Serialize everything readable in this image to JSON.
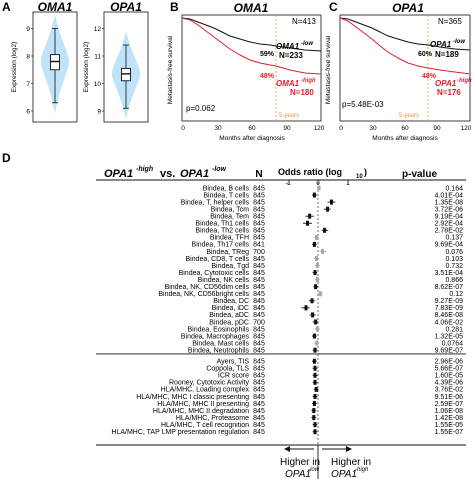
{
  "panels": {
    "A": {
      "label": "A",
      "violins": [
        {
          "gene": "OMA1",
          "ylabel": "Expression (log2)",
          "ticks": [
            "9",
            "8",
            "7",
            "6"
          ],
          "yrange": [
            5.6,
            9.6
          ],
          "whisker_low": 6.3,
          "q1": 7.5,
          "median": 7.8,
          "q3": 8.05,
          "whisker_high": 9.0
        },
        {
          "gene": "OPA1",
          "ylabel": "Expression (log2)",
          "ticks": [
            "12",
            "11",
            "10",
            "9"
          ],
          "yrange": [
            8.6,
            12.6
          ],
          "whisker_low": 9.1,
          "q1": 10.1,
          "median": 10.35,
          "q3": 10.55,
          "whisker_high": 11.4
        }
      ]
    },
    "B": {
      "label": "B",
      "gene": "OMA1",
      "n_label": "N=413",
      "ylabel": "Metastasis-free survival",
      "xlabel": "Months after diagnosis",
      "xticks": [
        "0",
        "30",
        "60",
        "90",
        "120"
      ],
      "pvalue": "p=0.062",
      "vline_label": "5-years",
      "pct_low": "59%",
      "pct_high": "48%",
      "low_group": "OMA1",
      "low_sup": "-low",
      "low_n": "N=233",
      "high_group": "OMA1",
      "high_sup": "-high",
      "high_n": "N=180"
    },
    "C": {
      "label": "C",
      "gene": "OPA1",
      "n_label": "N=365",
      "ylabel": "Metastasis-free survival",
      "xlabel": "Months after diagnosis",
      "xticks": [
        "0",
        "30",
        "60",
        "90",
        "120"
      ],
      "pvalue": "p=5.48E-03",
      "vline_label": "5-years",
      "pct_low": "60%",
      "pct_high": "48%",
      "low_group": "OPA1",
      "low_sup": "-low",
      "low_n": "N=189",
      "high_group": "OPA1",
      "high_sup": "-high",
      "high_n": "N=176"
    },
    "D": {
      "label": "D",
      "title_left": "OPA1",
      "title_sup_high": "-high",
      "title_vs": "vs.",
      "title_right": "OPA1",
      "title_sup_low": "-low",
      "n_header": "N",
      "or_header": "Odds ratio (log",
      "or_sub": "10",
      "or_close": ")",
      "p_header": "p-value",
      "or_ticks": [
        "-1",
        "0",
        "1"
      ],
      "arrow_left": "Higher in",
      "arrow_left_gene": "OPA1",
      "arrow_left_sup": "-low",
      "arrow_right": "Higher in",
      "arrow_right_gene": "OPA1",
      "arrow_right_sup": "-high"
    }
  },
  "colors": {
    "low": "#111111",
    "high": "#e0202a",
    "five_year": "#f0903a",
    "violin": "#bfe3f7",
    "sig": "#111111",
    "nonsig": "#a8a8a8"
  },
  "chart_data": {
    "type": "forest",
    "xlabel": "Odds ratio (log10)",
    "xlim": [
      -1,
      1
    ],
    "rows": [
      {
        "label": "Bindea, B cells",
        "n": "845",
        "p": "0.164",
        "or": 0.03,
        "lo": -0.05,
        "hi": 0.1,
        "sig": false
      },
      {
        "label": "Bindea, T cells",
        "n": "845",
        "p": "4.01E-04",
        "or": -0.12,
        "lo": -0.2,
        "hi": -0.04,
        "sig": true
      },
      {
        "label": "Bindea, T, helper cells",
        "n": "845",
        "p": "1.35E-08",
        "or": 0.45,
        "lo": 0.32,
        "hi": 0.58,
        "sig": true
      },
      {
        "label": "Bindea, Tcm",
        "n": "845",
        "p": "3.72E-06",
        "or": 0.32,
        "lo": 0.2,
        "hi": 0.42,
        "sig": true
      },
      {
        "label": "Bindea, Tem",
        "n": "845",
        "p": "9.19E-04",
        "or": -0.28,
        "lo": -0.42,
        "hi": -0.14,
        "sig": true
      },
      {
        "label": "Bindea, Th1 cells",
        "n": "845",
        "p": "2.92E-04",
        "or": -0.35,
        "lo": -0.5,
        "hi": -0.2,
        "sig": true
      },
      {
        "label": "Bindea, Th2 cells",
        "n": "845",
        "p": "2.78E-02",
        "or": 0.22,
        "lo": 0.12,
        "hi": 0.34,
        "sig": true
      },
      {
        "label": "Bindea, TFH",
        "n": "845",
        "p": "0.137",
        "or": -0.05,
        "lo": -0.13,
        "hi": 0.03,
        "sig": false
      },
      {
        "label": "Bindea, Th17 cells",
        "n": "841",
        "p": "9.69E-04",
        "or": -0.12,
        "lo": -0.2,
        "hi": -0.04,
        "sig": true
      },
      {
        "label": "Bindea, TReg",
        "n": "700",
        "p": "0.076",
        "or": 0.15,
        "lo": 0.05,
        "hi": 0.28,
        "sig": false
      },
      {
        "label": "Bindea, CD8, T cells",
        "n": "845",
        "p": "0.103",
        "or": -0.05,
        "lo": -0.14,
        "hi": 0.04,
        "sig": false
      },
      {
        "label": "Bindea, Tgd",
        "n": "845",
        "p": "0.732",
        "or": -0.02,
        "lo": -0.1,
        "hi": 0.06,
        "sig": false
      },
      {
        "label": "Bindea, Cytotoxic cells",
        "n": "845",
        "p": "3.51E-04",
        "or": -0.1,
        "lo": -0.18,
        "hi": -0.03,
        "sig": true
      },
      {
        "label": "Bindea, NK cells",
        "n": "845",
        "p": "0.866",
        "or": -0.02,
        "lo": -0.1,
        "hi": 0.06,
        "sig": false
      },
      {
        "label": "Bindea, NK, CD56dim cells",
        "n": "845",
        "p": "8.62E-07",
        "or": -0.08,
        "lo": -0.16,
        "hi": 0.0,
        "sig": true
      },
      {
        "label": "Bindea, NK, CD56bright cells",
        "n": "845",
        "p": "0.12",
        "or": 0.08,
        "lo": 0.0,
        "hi": 0.16,
        "sig": false
      },
      {
        "label": "Bindea, DC",
        "n": "845",
        "p": "9.27E-09",
        "or": -0.2,
        "lo": -0.3,
        "hi": -0.1,
        "sig": true
      },
      {
        "label": "Bindea, iDC",
        "n": "845",
        "p": "7.83E-09",
        "or": -0.4,
        "lo": -0.55,
        "hi": -0.28,
        "sig": true
      },
      {
        "label": "Bindea, aDC",
        "n": "845",
        "p": "8.46E-08",
        "or": -0.18,
        "lo": -0.28,
        "hi": -0.08,
        "sig": true
      },
      {
        "label": "Bindea, pDC",
        "n": "700",
        "p": "4.06E-02",
        "or": -0.08,
        "lo": -0.18,
        "hi": 0.02,
        "sig": true
      },
      {
        "label": "Bindea, Eosinophils",
        "n": "845",
        "p": "0.281",
        "or": -0.02,
        "lo": -0.1,
        "hi": 0.06,
        "sig": false
      },
      {
        "label": "Bindea, Macrophages",
        "n": "845",
        "p": "1.32E-05",
        "or": -0.12,
        "lo": -0.2,
        "hi": -0.04,
        "sig": true
      },
      {
        "label": "Bindea, Mast cells",
        "n": "845",
        "p": "0.0764",
        "or": -0.04,
        "lo": -0.12,
        "hi": 0.04,
        "sig": false
      },
      {
        "label": "Bindea, Neutrophils",
        "n": "845",
        "p": "9.69E-07",
        "or": -0.1,
        "lo": -0.18,
        "hi": -0.02,
        "sig": true
      },
      {
        "label": "Ayers, TIS",
        "n": "845",
        "p": "2.96E-06",
        "or": -0.12,
        "lo": -0.2,
        "hi": -0.04,
        "sig": true
      },
      {
        "label": "Coppola, TLS",
        "n": "845",
        "p": "5.66E-07",
        "or": -0.1,
        "lo": -0.18,
        "hi": -0.02,
        "sig": true
      },
      {
        "label": "ICR score",
        "n": "845",
        "p": "1.60E-05",
        "or": -0.1,
        "lo": -0.18,
        "hi": -0.02,
        "sig": true
      },
      {
        "label": "Rooney, Cytotoxic Activity",
        "n": "845",
        "p": "4.39E-06",
        "or": -0.1,
        "lo": -0.18,
        "hi": -0.02,
        "sig": true
      },
      {
        "label": "HLA/MHC, Loading complex",
        "n": "845",
        "p": "3.76E-02",
        "or": -0.06,
        "lo": -0.14,
        "hi": 0.02,
        "sig": true
      },
      {
        "label": "HLA/MHC, MHC I classic presenting",
        "n": "845",
        "p": "9.51E-06",
        "or": -0.1,
        "lo": -0.18,
        "hi": -0.02,
        "sig": true
      },
      {
        "label": "HLA/MHC, MHC II presenting",
        "n": "845",
        "p": "2.59E-07",
        "or": -0.12,
        "lo": -0.2,
        "hi": -0.04,
        "sig": true
      },
      {
        "label": "HLA/MHC, MHC II degradation",
        "n": "845",
        "p": "1.06E-08",
        "or": -0.14,
        "lo": -0.22,
        "hi": -0.06,
        "sig": true
      },
      {
        "label": "HLA/MHC, Proteasome",
        "n": "845",
        "p": "1.42E-08",
        "or": -0.14,
        "lo": -0.22,
        "hi": -0.06,
        "sig": true
      },
      {
        "label": "HLA/MHC, T cell recognition",
        "n": "845",
        "p": "1.55E-05",
        "or": -0.1,
        "lo": -0.18,
        "hi": -0.02,
        "sig": true
      },
      {
        "label": "HLA/MHC, TAP LMP presentation regulation",
        "n": "845",
        "p": "1.55E-07",
        "or": -0.1,
        "lo": -0.18,
        "hi": -0.02,
        "sig": true
      }
    ]
  }
}
